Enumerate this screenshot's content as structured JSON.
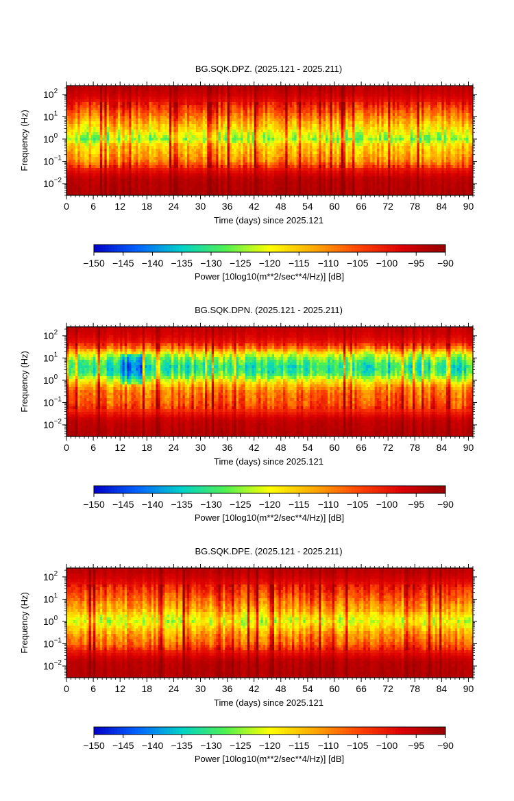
{
  "chart_data": [
    {
      "type": "heatmap",
      "title": "BG.SQK.DPZ. (2025.121 - 2025.211)",
      "xlabel": "Time (days) since 2025.121",
      "ylabel": "Frequency (Hz)",
      "xlim": [
        0,
        91
      ],
      "ylim": [
        0.003,
        250
      ],
      "yscale": "log",
      "x_ticks": [
        0,
        6,
        12,
        18,
        24,
        30,
        36,
        42,
        48,
        54,
        60,
        66,
        72,
        78,
        84,
        90
      ],
      "y_ticks": [
        {
          "value": 0.01,
          "base": "10",
          "exp": "−2"
        },
        {
          "value": 0.1,
          "base": "10",
          "exp": "−1"
        },
        {
          "value": 1,
          "base": "10",
          "exp": "0"
        },
        {
          "value": 10,
          "base": "10",
          "exp": "1"
        },
        {
          "value": 100,
          "base": "10",
          "exp": "2"
        }
      ],
      "colorbar": {
        "label": "Power [10log10(m**2/sec**4/Hz)] [dB]",
        "range": [
          -150,
          -90
        ],
        "ticks": [
          "−150",
          "−145",
          "−140",
          "−135",
          "−130",
          "−125",
          "−120",
          "−115",
          "−110",
          "−105",
          "−100",
          "−95",
          "−90"
        ]
      },
      "colormap": [
        "#0000c8",
        "#0064ff",
        "#00d2c8",
        "#50f050",
        "#ffff00",
        "#ffaa00",
        "#ff4600",
        "#dc0000",
        "#960000"
      ],
      "profile": {
        "log_freq": [
          -2.5,
          -1.8,
          -1.35,
          -1.0,
          -0.6,
          -0.3,
          0.0,
          0.25,
          0.5,
          0.8,
          1.1,
          1.45,
          1.7,
          2.0,
          2.3
        ],
        "power_db": [
          -93,
          -94,
          -100,
          -110,
          -114,
          -116,
          -125,
          -121,
          -117,
          -113,
          -108,
          -103,
          -99,
          -96,
          -94
        ]
      },
      "quiet_period_days": [],
      "quiet_extra_db": 0
    },
    {
      "type": "heatmap",
      "title": "BG.SQK.DPN. (2025.121 - 2025.211)",
      "xlabel": "Time (days) since 2025.121",
      "ylabel": "Frequency (Hz)",
      "xlim": [
        0,
        91
      ],
      "ylim": [
        0.003,
        250
      ],
      "yscale": "log",
      "x_ticks": [
        0,
        6,
        12,
        18,
        24,
        30,
        36,
        42,
        48,
        54,
        60,
        66,
        72,
        78,
        84,
        90
      ],
      "y_ticks": [
        {
          "value": 0.01,
          "base": "10",
          "exp": "−2"
        },
        {
          "value": 0.1,
          "base": "10",
          "exp": "−1"
        },
        {
          "value": 1,
          "base": "10",
          "exp": "0"
        },
        {
          "value": 10,
          "base": "10",
          "exp": "1"
        },
        {
          "value": 100,
          "base": "10",
          "exp": "2"
        }
      ],
      "colorbar": {
        "label": "Power [10log10(m**2/sec**4/Hz)] [dB]",
        "range": [
          -150,
          -90
        ],
        "ticks": [
          "−150",
          "−145",
          "−140",
          "−135",
          "−130",
          "−125",
          "−120",
          "−115",
          "−110",
          "−105",
          "−100",
          "−95",
          "−90"
        ]
      },
      "colormap": [
        "#0000c8",
        "#0064ff",
        "#00d2c8",
        "#50f050",
        "#ffff00",
        "#ffaa00",
        "#ff4600",
        "#dc0000",
        "#960000"
      ],
      "profile": {
        "log_freq": [
          -2.5,
          -1.8,
          -1.35,
          -1.0,
          -0.6,
          -0.3,
          0.0,
          0.3,
          0.6,
          0.9,
          1.2,
          1.45,
          1.7,
          2.0,
          2.3
        ],
        "power_db": [
          -93,
          -95,
          -102,
          -106,
          -108,
          -112,
          -120,
          -130,
          -132,
          -128,
          -120,
          -108,
          -100,
          -97,
          -95
        ]
      },
      "quiet_period_days": [
        12,
        17
      ],
      "quiet_extra_db": -10
    },
    {
      "type": "heatmap",
      "title": "BG.SQK.DPE. (2025.121 - 2025.211)",
      "xlabel": "Time (days) since 2025.121",
      "ylabel": "Frequency (Hz)",
      "xlim": [
        0,
        91
      ],
      "ylim": [
        0.003,
        250
      ],
      "yscale": "log",
      "x_ticks": [
        0,
        6,
        12,
        18,
        24,
        30,
        36,
        42,
        48,
        54,
        60,
        66,
        72,
        78,
        84,
        90
      ],
      "y_ticks": [
        {
          "value": 0.01,
          "base": "10",
          "exp": "−2"
        },
        {
          "value": 0.1,
          "base": "10",
          "exp": "−1"
        },
        {
          "value": 1,
          "base": "10",
          "exp": "0"
        },
        {
          "value": 10,
          "base": "10",
          "exp": "1"
        },
        {
          "value": 100,
          "base": "10",
          "exp": "2"
        }
      ],
      "colorbar": {
        "label": "Power [10log10(m**2/sec**4/Hz)] [dB]",
        "range": [
          -150,
          -90
        ],
        "ticks": [
          "−150",
          "−145",
          "−140",
          "−135",
          "−130",
          "−125",
          "−120",
          "−115",
          "−110",
          "−105",
          "−100",
          "−95",
          "−90"
        ]
      },
      "colormap": [
        "#0000c8",
        "#0064ff",
        "#00d2c8",
        "#50f050",
        "#ffff00",
        "#ffaa00",
        "#ff4600",
        "#dc0000",
        "#960000"
      ],
      "profile": {
        "log_freq": [
          -2.5,
          -1.8,
          -1.35,
          -1.0,
          -0.6,
          -0.3,
          0.0,
          0.25,
          0.5,
          0.8,
          1.1,
          1.45,
          1.7,
          2.0,
          2.3
        ],
        "power_db": [
          -93,
          -94,
          -100,
          -107,
          -111,
          -116,
          -121,
          -118,
          -113,
          -110,
          -106,
          -102,
          -99,
          -96,
          -94
        ]
      },
      "quiet_period_days": [],
      "quiet_extra_db": 0
    }
  ]
}
